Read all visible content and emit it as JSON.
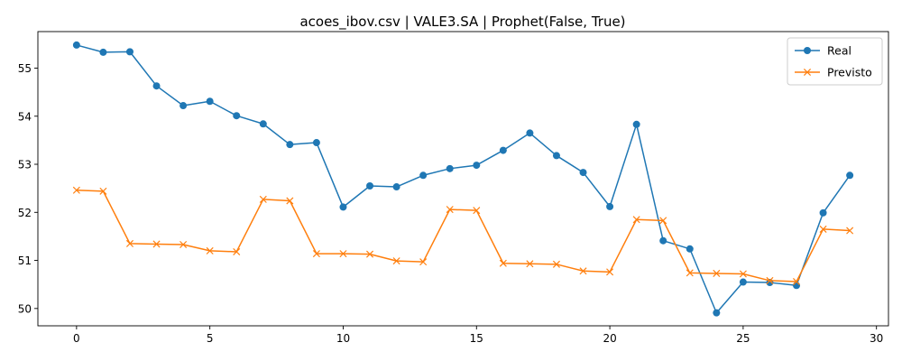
{
  "chart_data": {
    "type": "line",
    "title": "acoes_ibov.csv | VALE3.SA | Prophet(False, True)",
    "xlabel": "",
    "ylabel": "",
    "x": [
      0,
      1,
      2,
      3,
      4,
      5,
      6,
      7,
      8,
      9,
      10,
      11,
      12,
      13,
      14,
      15,
      16,
      17,
      18,
      19,
      20,
      21,
      22,
      23,
      24,
      25,
      26,
      27,
      28,
      29
    ],
    "xlim": [
      -1.45,
      30.45
    ],
    "ylim": [
      49.64,
      55.76
    ],
    "xticks": [
      0,
      5,
      10,
      15,
      20,
      25,
      30
    ],
    "yticks": [
      50,
      51,
      52,
      53,
      54,
      55
    ],
    "grid": false,
    "legend": "top-right",
    "series": [
      {
        "name": "Real",
        "color": "#1f77b4",
        "marker": "circle",
        "values": [
          55.48,
          55.33,
          55.34,
          54.63,
          54.22,
          54.31,
          54.01,
          53.84,
          53.41,
          53.45,
          52.11,
          52.55,
          52.53,
          52.77,
          52.91,
          52.98,
          53.29,
          53.65,
          53.18,
          52.83,
          52.12,
          53.83,
          51.41,
          51.24,
          49.91,
          50.55,
          50.54,
          50.48,
          51.99,
          52.77
        ]
      },
      {
        "name": "Previsto",
        "color": "#ff7f0e",
        "marker": "x",
        "values": [
          52.46,
          52.44,
          51.35,
          51.34,
          51.33,
          51.2,
          51.18,
          52.27,
          52.24,
          51.14,
          51.14,
          51.13,
          50.99,
          50.97,
          52.06,
          52.04,
          50.94,
          50.93,
          50.92,
          50.78,
          50.76,
          51.85,
          51.83,
          50.74,
          50.73,
          50.72,
          50.58,
          50.56,
          51.65,
          51.62
        ]
      }
    ]
  }
}
